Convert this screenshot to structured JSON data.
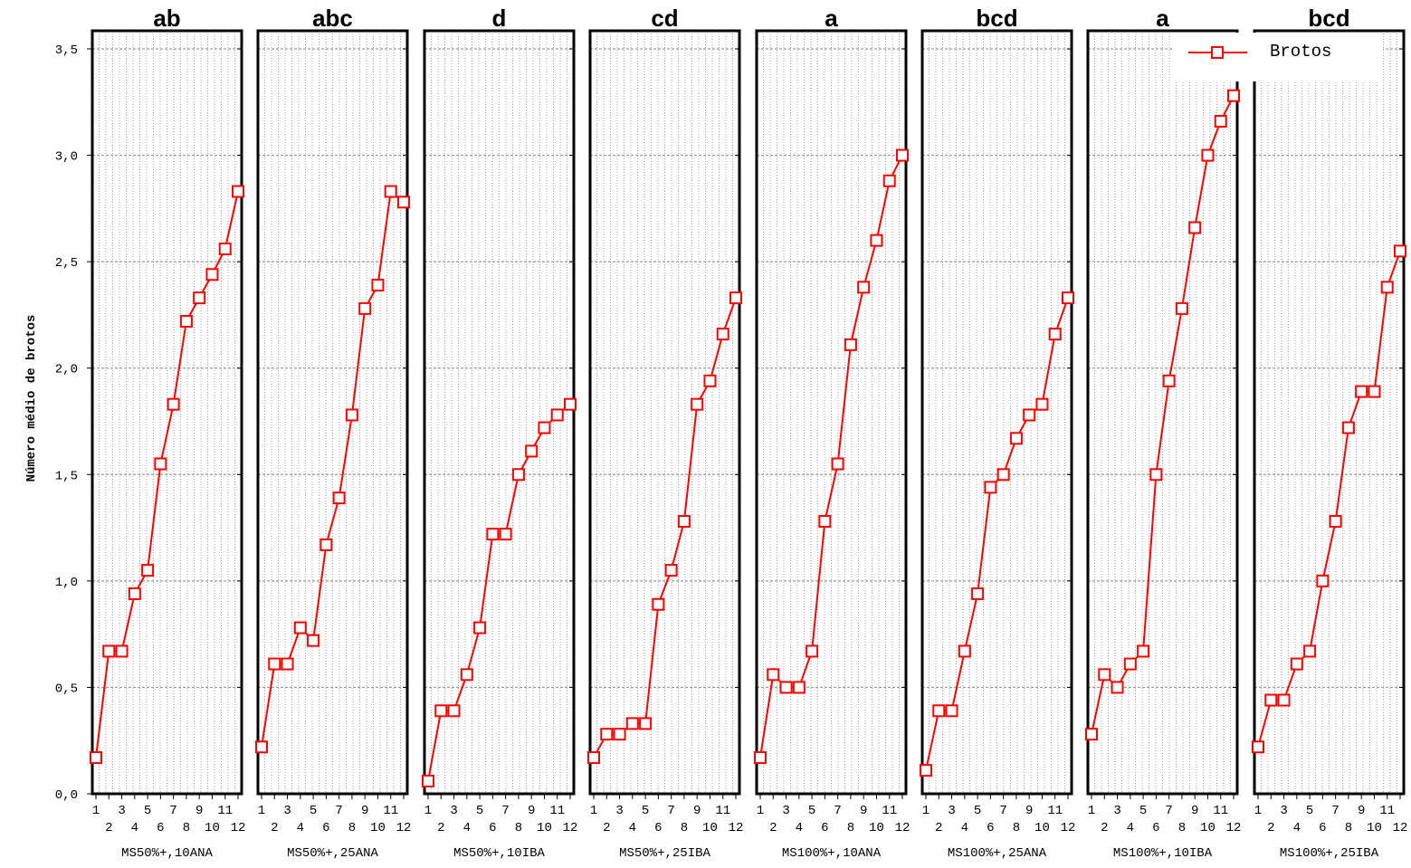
{
  "chart_data": {
    "type": "line",
    "ylabel": "Número médio de brotos",
    "ylim": [
      0,
      3.5
    ],
    "y_ticks": [
      "0,0",
      "0,5",
      "1,0",
      "1,5",
      "2,0",
      "2,5",
      "3,0",
      "3,5"
    ],
    "x_ticks": [
      "1",
      "2",
      "3",
      "4",
      "5",
      "6",
      "7",
      "8",
      "9",
      "10",
      "11",
      "12"
    ],
    "grid": true,
    "legend": {
      "position": "top-right",
      "entries": [
        "Brotos"
      ]
    },
    "series_color": "#ff0000",
    "panels": [
      {
        "title": "ab",
        "label": "MS50%+,10ANA",
        "values": [
          0.17,
          0.67,
          0.67,
          0.94,
          1.05,
          1.55,
          1.83,
          2.22,
          2.33,
          2.44,
          2.56,
          2.83
        ]
      },
      {
        "title": "abc",
        "label": "MS50%+,25ANA",
        "values": [
          0.22,
          0.61,
          0.61,
          0.78,
          0.72,
          1.17,
          1.39,
          1.78,
          2.28,
          2.39,
          2.83,
          2.78
        ]
      },
      {
        "title": "d",
        "label": "MS50%+,10IBA",
        "values": [
          0.06,
          0.39,
          0.39,
          0.56,
          0.78,
          1.22,
          1.22,
          1.5,
          1.61,
          1.72,
          1.78,
          1.83
        ]
      },
      {
        "title": "cd",
        "label": "MS50%+,25IBA",
        "values": [
          0.17,
          0.28,
          0.28,
          0.33,
          0.33,
          0.89,
          1.05,
          1.28,
          1.83,
          1.94,
          2.16,
          2.33
        ]
      },
      {
        "title": "a",
        "label": "MS100%+,10ANA",
        "values": [
          0.17,
          0.56,
          0.5,
          0.5,
          0.67,
          1.28,
          1.55,
          2.11,
          2.38,
          2.6,
          2.88,
          3.0
        ]
      },
      {
        "title": "bcd",
        "label": "MS100%+,25ANA",
        "values": [
          0.11,
          0.39,
          0.39,
          0.67,
          0.94,
          1.44,
          1.5,
          1.67,
          1.78,
          1.83,
          2.16,
          2.33
        ]
      },
      {
        "title": "a",
        "label": "MS100%+,10IBA",
        "values": [
          0.28,
          0.56,
          0.5,
          0.61,
          0.67,
          1.5,
          1.94,
          2.28,
          2.66,
          3.0,
          3.16,
          3.28
        ]
      },
      {
        "title": "bcd",
        "label": "MS100%+,25IBA",
        "values": [
          0.22,
          0.44,
          0.44,
          0.61,
          0.67,
          1.0,
          1.28,
          1.72,
          1.89,
          1.89,
          2.38,
          2.55
        ]
      }
    ]
  }
}
